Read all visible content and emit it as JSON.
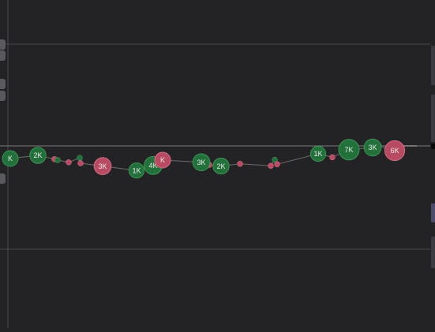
{
  "colors": {
    "background": "#232325",
    "gridline": "#4a4a4e",
    "baseline": "#6a6a6e",
    "buy": "#22703a",
    "sell": "#b84a62",
    "buy_outline": "#3e9457",
    "sell_outline": "#d66d85",
    "line": "#6c6c6c",
    "label": "#e8e8e8"
  },
  "bubbles": {
    "labels": [
      "2K",
      "3K",
      "1K",
      "4K",
      "K",
      "3K",
      "2K",
      "1K",
      "7K",
      "3K",
      "6K"
    ]
  },
  "chart_data": {
    "type": "scatter",
    "title": "",
    "xlabel": "",
    "ylabel": "",
    "series": [
      {
        "name": "",
        "color": "#22703a",
        "points": [
          {
            "x": 0.5,
            "y": 0.1,
            "label": "K"
          },
          {
            "x": 4,
            "y": 0.2,
            "label": "2K"
          },
          {
            "x": 6.5,
            "y": 0.05
          },
          {
            "x": 9.3,
            "y": 0.12
          },
          {
            "x": 16.5,
            "y": -0.28,
            "label": "1K"
          },
          {
            "x": 18.6,
            "y": -0.12,
            "label": "4K"
          },
          {
            "x": 24.7,
            "y": -0.02,
            "label": "3K"
          },
          {
            "x": 27.2,
            "y": -0.14,
            "label": "2K"
          },
          {
            "x": 34,
            "y": 0.06
          },
          {
            "x": 39.5,
            "y": 0.25,
            "label": "1K"
          },
          {
            "x": 43.4,
            "y": 0.38,
            "label": "7K"
          },
          {
            "x": 46.4,
            "y": 0.45,
            "label": "3K"
          },
          {
            "x": 47.2,
            "y": 0.5
          }
        ]
      },
      {
        "name": "",
        "color": "#b84a62",
        "points": [
          {
            "x": 6.1,
            "y": 0.08
          },
          {
            "x": 7.9,
            "y": -0.02
          },
          {
            "x": 9.4,
            "y": -0.05
          },
          {
            "x": 12.2,
            "y": -0.14,
            "label": "3K"
          },
          {
            "x": 19.8,
            "y": 0.05,
            "label": "K"
          },
          {
            "x": 25.7,
            "y": -0.1
          },
          {
            "x": 29.6,
            "y": -0.07
          },
          {
            "x": 33.5,
            "y": -0.13
          },
          {
            "x": 34.3,
            "y": -0.08
          },
          {
            "x": 41.3,
            "y": 0.14
          },
          {
            "x": 49.2,
            "y": 0.35,
            "label": "6K"
          },
          {
            "x": 49.9,
            "y": 0.28
          }
        ]
      }
    ]
  }
}
